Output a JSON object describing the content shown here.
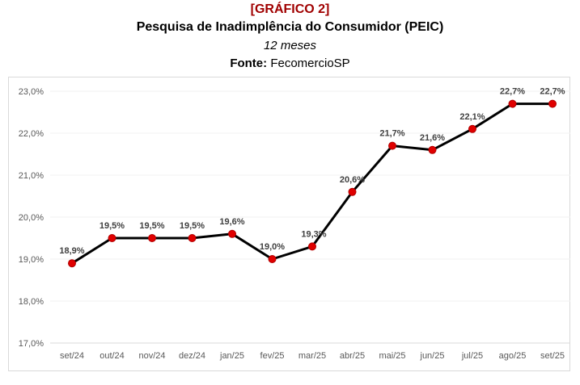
{
  "header": {
    "figure_label": "[GRÁFICO 2]",
    "title": "Pesquisa de Inadimplência do Consumidor (PEIC)",
    "subtitle": "12 meses",
    "source_label": "Fonte:",
    "source": "FecomercioSP"
  },
  "colors": {
    "line": "#000000",
    "marker": "#e00000",
    "figure_label": "#a00000"
  },
  "chart_data": {
    "type": "line",
    "title": "Pesquisa de Inadimplência do Consumidor (PEIC)",
    "categories": [
      "set/24",
      "out/24",
      "nov/24",
      "dez/24",
      "jan/25",
      "fev/25",
      "mar/25",
      "abr/25",
      "mai/25",
      "jun/25",
      "jul/25",
      "ago/25",
      "set/25"
    ],
    "values": [
      18.9,
      19.5,
      19.5,
      19.5,
      19.6,
      19.0,
      19.3,
      20.6,
      21.7,
      21.6,
      22.1,
      22.7,
      22.7
    ],
    "data_labels": [
      "18,9%",
      "19,5%",
      "19,5%",
      "19,5%",
      "19,6%",
      "19,0%",
      "19,3%",
      "20,6%",
      "21,7%",
      "21,6%",
      "22,1%",
      "22,7%",
      "22,7%"
    ],
    "ylim": [
      17,
      23
    ],
    "yticks": [
      17,
      18,
      19,
      20,
      21,
      22,
      23
    ],
    "ytick_labels": [
      "17,0%",
      "18,0%",
      "19,0%",
      "20,0%",
      "21,0%",
      "22,0%",
      "23,0%"
    ],
    "xlabel": "",
    "ylabel": "",
    "legend": "none"
  }
}
